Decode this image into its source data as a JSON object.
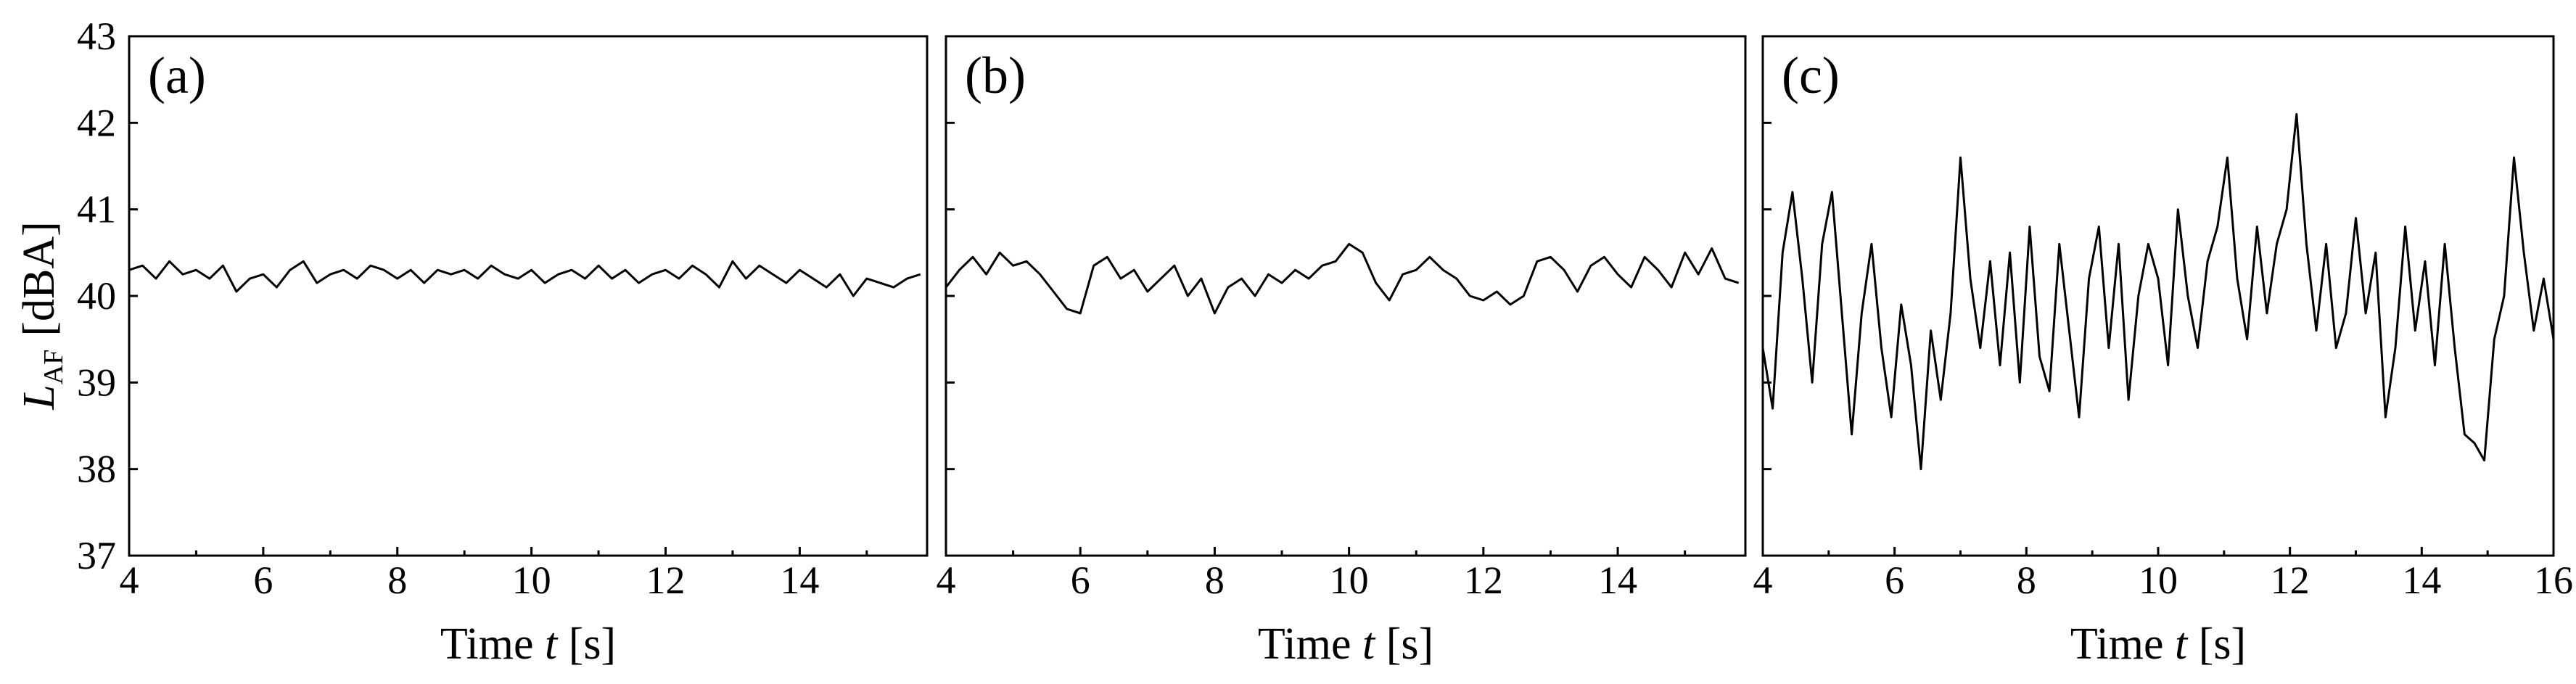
{
  "colors": {
    "line": "#000000",
    "frame": "#000000",
    "background": "#ffffff"
  },
  "ylabel": {
    "symbol": "L",
    "subscript": "AF",
    "unit": "[dBA]"
  },
  "xlabel": {
    "text": "Time ",
    "symbol": "t",
    "unit": " [s]"
  },
  "chart_data": [
    {
      "type": "line",
      "panel_label": "(a)",
      "xlim": [
        4,
        15.9
      ],
      "ylim": [
        37,
        43
      ],
      "xticks": [
        4,
        6,
        8,
        10,
        12,
        14
      ],
      "yticks": [
        37,
        38,
        39,
        40,
        41,
        42,
        43
      ],
      "grid": false,
      "series": [
        {
          "x": [
            4.0,
            4.2,
            4.4,
            4.6,
            4.8,
            5.0,
            5.2,
            5.4,
            5.6,
            5.8,
            6.0,
            6.2,
            6.4,
            6.6,
            6.8,
            7.0,
            7.2,
            7.4,
            7.6,
            7.8,
            8.0,
            8.2,
            8.4,
            8.6,
            8.8,
            9.0,
            9.2,
            9.4,
            9.6,
            9.8,
            10.0,
            10.2,
            10.4,
            10.6,
            10.8,
            11.0,
            11.2,
            11.4,
            11.6,
            11.8,
            12.0,
            12.2,
            12.4,
            12.6,
            12.8,
            13.0,
            13.2,
            13.4,
            13.6,
            13.8,
            14.0,
            14.2,
            14.4,
            14.6,
            14.8,
            15.0,
            15.2,
            15.4,
            15.6,
            15.8
          ],
          "y": [
            40.3,
            40.35,
            40.2,
            40.4,
            40.25,
            40.3,
            40.2,
            40.35,
            40.05,
            40.2,
            40.25,
            40.1,
            40.3,
            40.4,
            40.15,
            40.25,
            40.3,
            40.2,
            40.35,
            40.3,
            40.2,
            40.3,
            40.15,
            40.3,
            40.25,
            40.3,
            40.2,
            40.35,
            40.25,
            40.2,
            40.3,
            40.15,
            40.25,
            40.3,
            40.2,
            40.35,
            40.2,
            40.3,
            40.15,
            40.25,
            40.3,
            40.2,
            40.35,
            40.25,
            40.1,
            40.4,
            40.2,
            40.35,
            40.25,
            40.15,
            40.3,
            40.2,
            40.1,
            40.25,
            40.0,
            40.2,
            40.15,
            40.1,
            40.2,
            40.25
          ]
        }
      ]
    },
    {
      "type": "line",
      "panel_label": "(b)",
      "xlim": [
        4,
        15.9
      ],
      "ylim": [
        37,
        43
      ],
      "xticks": [
        4,
        6,
        8,
        10,
        12,
        14
      ],
      "yticks": [
        37,
        38,
        39,
        40,
        41,
        42,
        43
      ],
      "grid": false,
      "series": [
        {
          "x": [
            4.0,
            4.2,
            4.4,
            4.6,
            4.8,
            5.0,
            5.2,
            5.4,
            5.6,
            5.8,
            6.0,
            6.2,
            6.4,
            6.6,
            6.8,
            7.0,
            7.2,
            7.4,
            7.6,
            7.8,
            8.0,
            8.2,
            8.4,
            8.6,
            8.8,
            9.0,
            9.2,
            9.4,
            9.6,
            9.8,
            10.0,
            10.2,
            10.4,
            10.6,
            10.8,
            11.0,
            11.2,
            11.4,
            11.6,
            11.8,
            12.0,
            12.2,
            12.4,
            12.6,
            12.8,
            13.0,
            13.2,
            13.4,
            13.6,
            13.8,
            14.0,
            14.2,
            14.4,
            14.6,
            14.8,
            15.0,
            15.2,
            15.4,
            15.6,
            15.8
          ],
          "y": [
            40.1,
            40.3,
            40.45,
            40.25,
            40.5,
            40.35,
            40.4,
            40.25,
            40.05,
            39.85,
            39.8,
            40.35,
            40.45,
            40.2,
            40.3,
            40.05,
            40.2,
            40.35,
            40.0,
            40.2,
            39.8,
            40.1,
            40.2,
            40.0,
            40.25,
            40.15,
            40.3,
            40.2,
            40.35,
            40.4,
            40.6,
            40.5,
            40.15,
            39.95,
            40.25,
            40.3,
            40.45,
            40.3,
            40.2,
            40.0,
            39.95,
            40.05,
            39.9,
            40.0,
            40.4,
            40.45,
            40.3,
            40.05,
            40.35,
            40.45,
            40.25,
            40.1,
            40.45,
            40.3,
            40.1,
            40.5,
            40.25,
            40.55,
            40.2,
            40.15
          ]
        }
      ]
    },
    {
      "type": "line",
      "panel_label": "(c)",
      "xlim": [
        4,
        16
      ],
      "ylim": [
        37,
        43
      ],
      "xticks": [
        4,
        6,
        8,
        10,
        12,
        14,
        16
      ],
      "yticks": [
        37,
        38,
        39,
        40,
        41,
        42,
        43
      ],
      "grid": false,
      "series": [
        {
          "x": [
            4.0,
            4.15,
            4.3,
            4.45,
            4.6,
            4.75,
            4.9,
            5.05,
            5.2,
            5.35,
            5.5,
            5.65,
            5.8,
            5.95,
            6.1,
            6.25,
            6.4,
            6.55,
            6.7,
            6.85,
            7.0,
            7.15,
            7.3,
            7.45,
            7.6,
            7.75,
            7.9,
            8.05,
            8.2,
            8.35,
            8.5,
            8.65,
            8.8,
            8.95,
            9.1,
            9.25,
            9.4,
            9.55,
            9.7,
            9.85,
            10.0,
            10.15,
            10.3,
            10.45,
            10.6,
            10.75,
            10.9,
            11.05,
            11.2,
            11.35,
            11.5,
            11.65,
            11.8,
            11.95,
            12.1,
            12.25,
            12.4,
            12.55,
            12.7,
            12.85,
            13.0,
            13.15,
            13.3,
            13.45,
            13.6,
            13.75,
            13.9,
            14.05,
            14.2,
            14.35,
            14.5,
            14.65,
            14.8,
            14.95,
            15.1,
            15.25,
            15.4,
            15.55,
            15.7,
            15.85,
            16.0
          ],
          "y": [
            39.4,
            38.7,
            40.5,
            41.2,
            40.2,
            39.0,
            40.6,
            41.2,
            39.8,
            38.4,
            39.8,
            40.6,
            39.4,
            38.6,
            39.9,
            39.2,
            38.0,
            39.6,
            38.8,
            39.8,
            41.6,
            40.2,
            39.4,
            40.4,
            39.2,
            40.5,
            39.0,
            40.8,
            39.3,
            38.9,
            40.6,
            39.6,
            38.6,
            40.2,
            40.8,
            39.4,
            40.6,
            38.8,
            40.0,
            40.6,
            40.2,
            39.2,
            41.0,
            40.0,
            39.4,
            40.4,
            40.8,
            41.6,
            40.2,
            39.5,
            40.8,
            39.8,
            40.6,
            41.0,
            42.1,
            40.6,
            39.6,
            40.6,
            39.4,
            39.8,
            40.9,
            39.8,
            40.5,
            38.6,
            39.4,
            40.8,
            39.6,
            40.4,
            39.2,
            40.6,
            39.4,
            38.4,
            38.3,
            38.1,
            39.5,
            40.0,
            41.6,
            40.5,
            39.6,
            40.2,
            39.5
          ]
        }
      ]
    }
  ]
}
